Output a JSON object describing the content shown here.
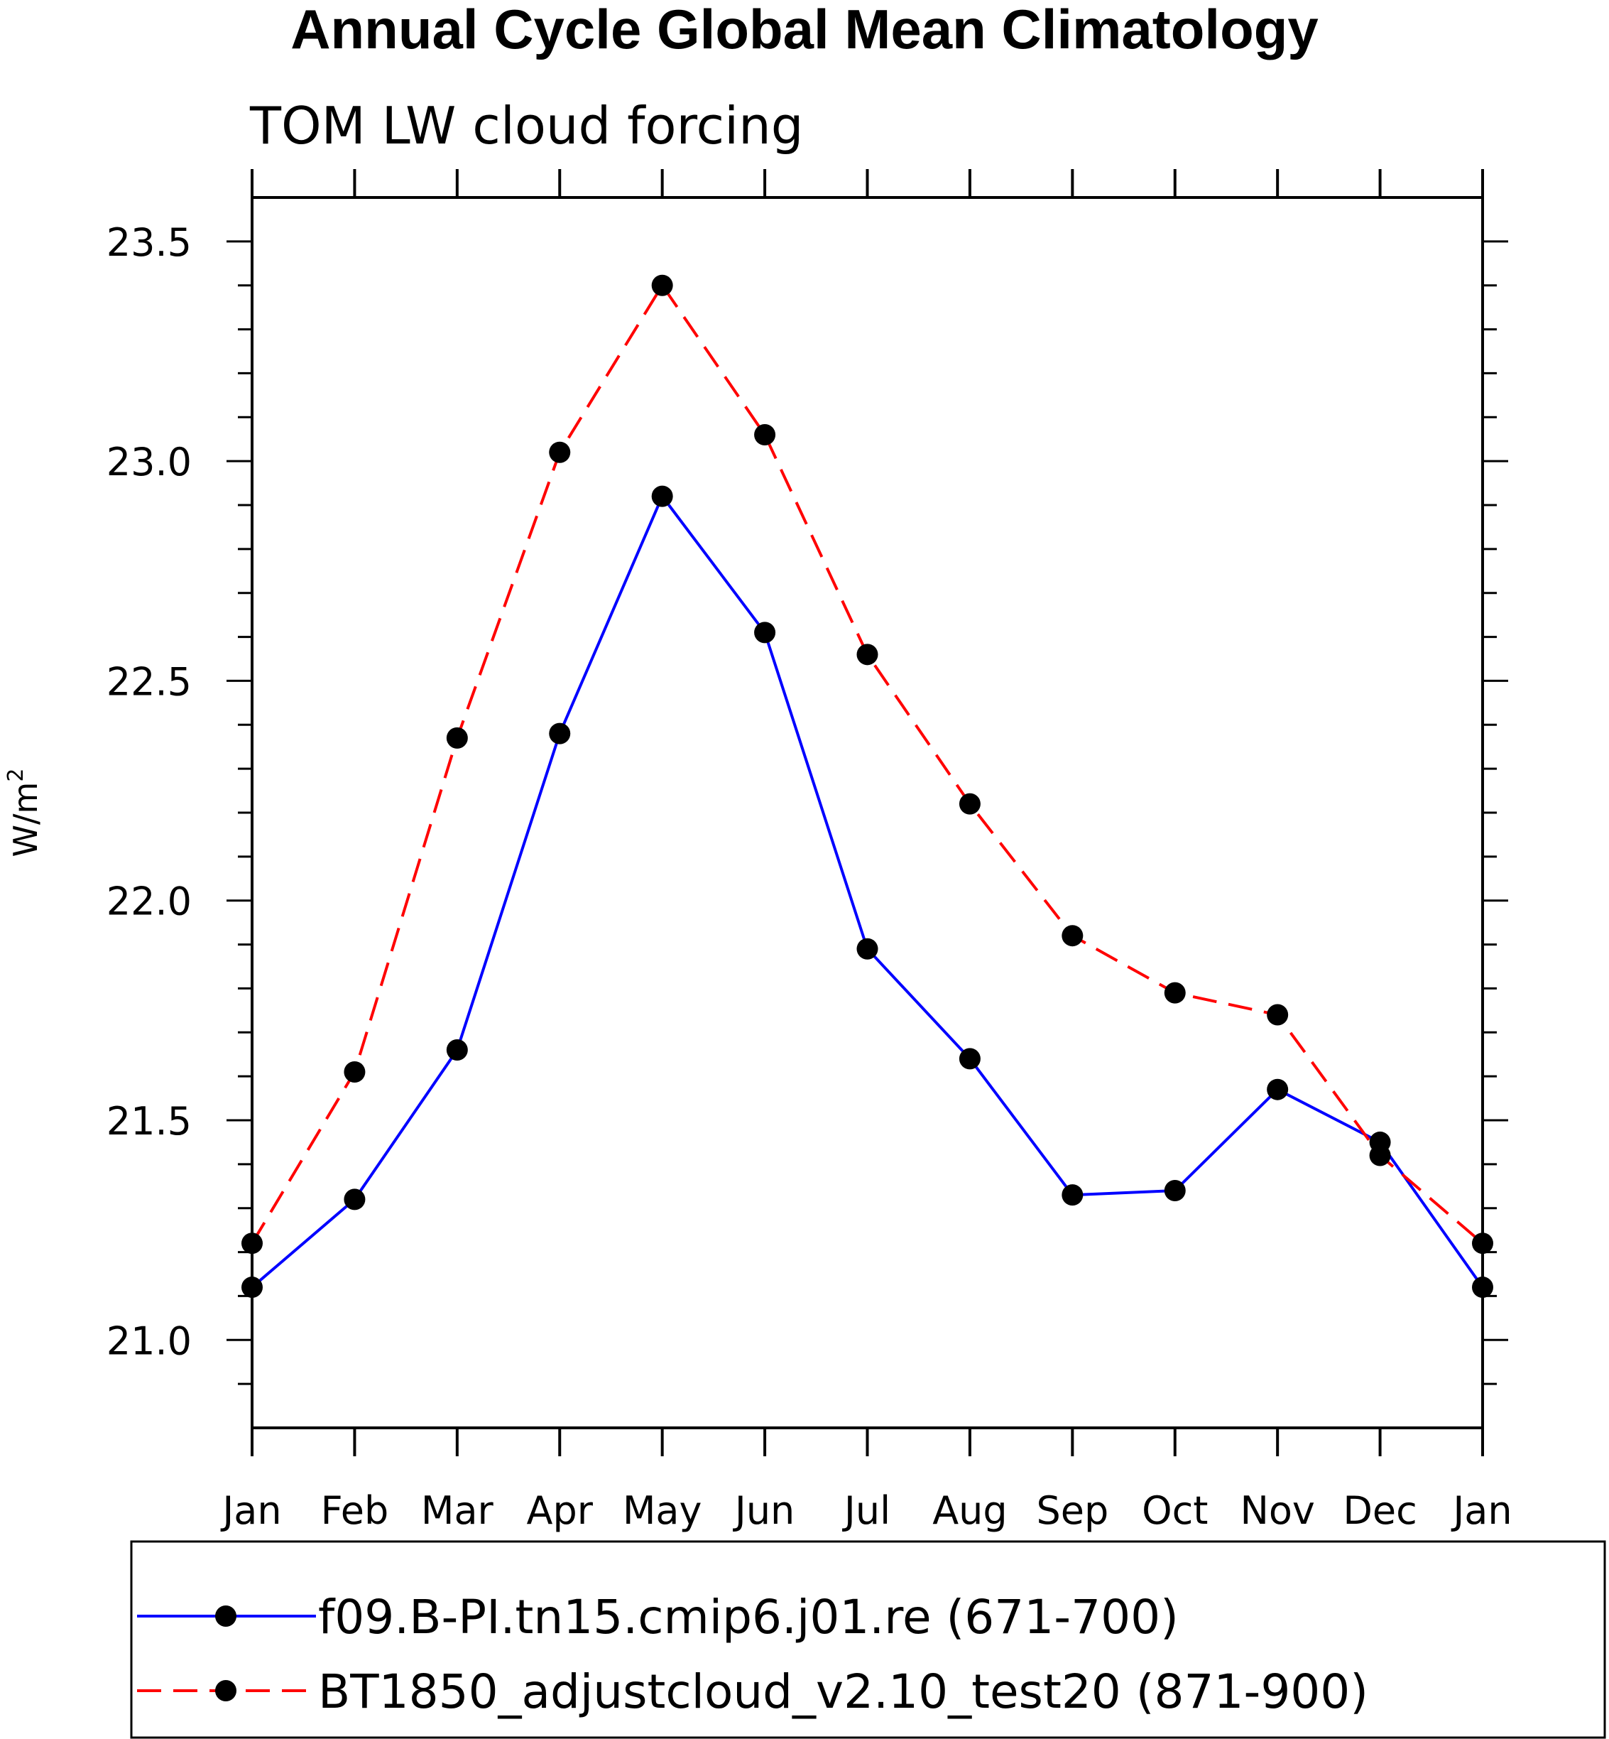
{
  "chart_data": {
    "type": "line",
    "title": "Annual Cycle Global Mean Climatology",
    "subtitle": "TOM LW cloud forcing",
    "ylabel": "W/m",
    "ylabel_sup": "2",
    "xlabel": "",
    "categories": [
      "Jan",
      "Feb",
      "Mar",
      "Apr",
      "May",
      "Jun",
      "Jul",
      "Aug",
      "Sep",
      "Oct",
      "Nov",
      "Dec",
      "Jan"
    ],
    "ylim": [
      20.8,
      23.6
    ],
    "yticks": [
      "21.0",
      "21.5",
      "22.0",
      "22.5",
      "23.0",
      "23.5"
    ],
    "grid": false,
    "legend_position": "bottom",
    "series": [
      {
        "name": "f09.B-PI.tn15.cmip6.j01.re (671-700)",
        "color": "#0000ff",
        "style": "solid",
        "values": [
          21.12,
          21.32,
          21.66,
          22.38,
          22.92,
          22.61,
          21.89,
          21.64,
          21.33,
          21.34,
          21.57,
          21.45,
          21.12
        ]
      },
      {
        "name": "BT1850_adjustcloud_v2.10_test20 (871-900)",
        "color": "#ff0000",
        "style": "dashed",
        "values": [
          21.22,
          21.61,
          22.37,
          23.02,
          23.4,
          23.06,
          22.56,
          22.22,
          21.92,
          21.79,
          21.74,
          21.42,
          21.22
        ]
      }
    ]
  }
}
